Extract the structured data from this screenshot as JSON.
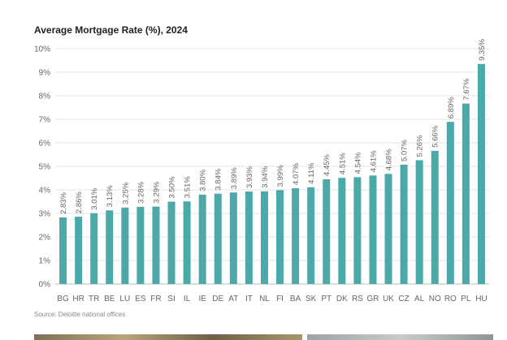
{
  "title": "Average Mortgage Rate (%), 2024",
  "source": "Source: Deloitte national offices",
  "chart_data": {
    "type": "bar",
    "title": "Average Mortgage Rate (%), 2024",
    "xlabel": "",
    "ylabel": "",
    "ylim": [
      0,
      10
    ],
    "yticks": [
      0,
      1,
      2,
      3,
      4,
      5,
      6,
      7,
      8,
      9,
      10
    ],
    "ytick_labels": [
      "0%",
      "1%",
      "2%",
      "3%",
      "4%",
      "5%",
      "6%",
      "7%",
      "8%",
      "9%",
      "10%"
    ],
    "grid": true,
    "bar_color": "#4baaa9",
    "categories": [
      "BG",
      "HR",
      "TR",
      "BE",
      "LU",
      "ES",
      "FR",
      "SI",
      "IL",
      "IE",
      "DE",
      "AT",
      "IT",
      "NL",
      "FI",
      "BA",
      "SK",
      "PT",
      "DK",
      "RS",
      "GR",
      "UK",
      "CZ",
      "AL",
      "NO",
      "RO",
      "PL",
      "HU"
    ],
    "values": [
      2.83,
      2.86,
      3.01,
      3.13,
      3.25,
      3.28,
      3.29,
      3.5,
      3.51,
      3.8,
      3.84,
      3.89,
      3.93,
      3.94,
      3.99,
      4.07,
      4.11,
      4.45,
      4.51,
      4.54,
      4.61,
      4.68,
      5.07,
      5.26,
      5.66,
      6.89,
      7.67,
      9.35
    ],
    "labels": [
      "2.83%",
      "2.86%",
      "3.01%",
      "3.13%",
      "3.25%",
      "3.28%",
      "3.29%",
      "3.50%",
      "3.51%",
      "3.80%",
      "3.84%",
      "3.89%",
      "3.93%",
      "3.94%",
      "3.99%",
      "4.07%",
      "4.11%",
      "4.45%",
      "4.51%",
      "4.54%",
      "4.61%",
      "4.68%",
      "5.07%",
      "5.26%",
      "5.66%",
      "6.89%",
      "7.67%",
      "9.35%"
    ]
  }
}
